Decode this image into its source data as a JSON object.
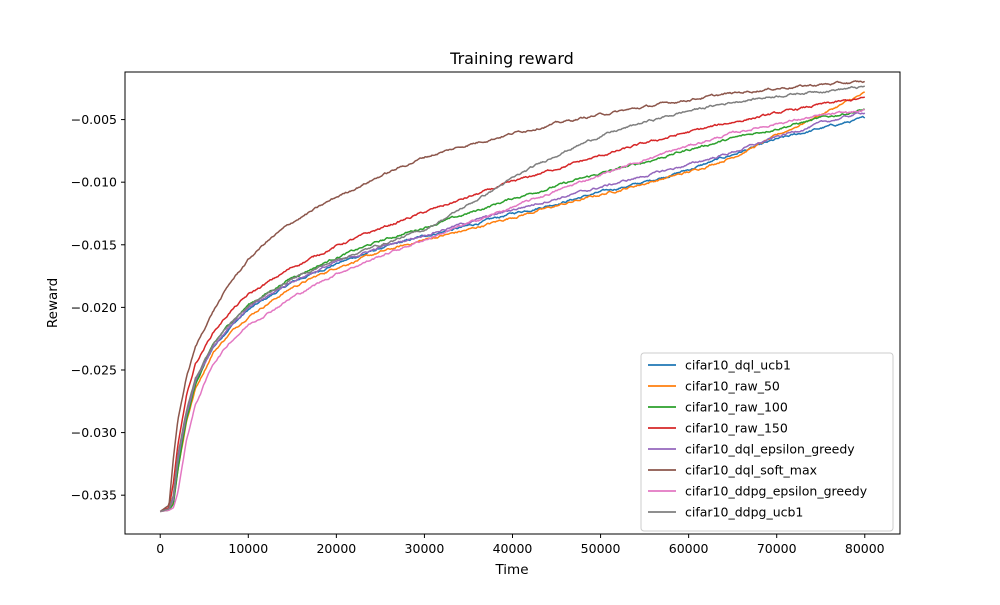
{
  "chart_data": {
    "type": "line",
    "title": "Training reward",
    "xlabel": "Time",
    "ylabel": "Reward",
    "xlim": [
      -4000,
      84000
    ],
    "ylim": [
      -0.0381,
      -0.0012
    ],
    "xticks": [
      0,
      10000,
      20000,
      30000,
      40000,
      50000,
      60000,
      70000,
      80000
    ],
    "xtick_labels": [
      "0",
      "10000",
      "20000",
      "30000",
      "40000",
      "50000",
      "60000",
      "70000",
      "80000"
    ],
    "yticks": [
      -0.035,
      -0.03,
      -0.025,
      -0.02,
      -0.015,
      -0.01,
      -0.005
    ],
    "ytick_labels": [
      "−0.035",
      "−0.030",
      "−0.025",
      "−0.020",
      "−0.015",
      "−0.010",
      "−0.005"
    ],
    "grid": false,
    "legend_position": "lower-right",
    "series": [
      {
        "name": "cifar10_dql_ucb1",
        "color": "#1f77b4",
        "points": [
          [
            0,
            -0.0363
          ],
          [
            1000,
            -0.0361
          ],
          [
            1500,
            -0.0355
          ],
          [
            2000,
            -0.0325
          ],
          [
            3000,
            -0.0285
          ],
          [
            4000,
            -0.026
          ],
          [
            6000,
            -0.0232
          ],
          [
            8000,
            -0.0215
          ],
          [
            10000,
            -0.0202
          ],
          [
            15000,
            -0.018
          ],
          [
            20000,
            -0.0165
          ],
          [
            25000,
            -0.0153
          ],
          [
            30000,
            -0.0143
          ],
          [
            35000,
            -0.0135
          ],
          [
            40000,
            -0.0125
          ],
          [
            45000,
            -0.0117
          ],
          [
            50000,
            -0.0108
          ],
          [
            55000,
            -0.01
          ],
          [
            60000,
            -0.009
          ],
          [
            65000,
            -0.0078
          ],
          [
            70000,
            -0.0066
          ],
          [
            75000,
            -0.0057
          ],
          [
            80000,
            -0.0049
          ]
        ]
      },
      {
        "name": "cifar10_raw_50",
        "color": "#ff7f0e",
        "points": [
          [
            0,
            -0.0363
          ],
          [
            1000,
            -0.0361
          ],
          [
            1500,
            -0.0356
          ],
          [
            2000,
            -0.033
          ],
          [
            3000,
            -0.029
          ],
          [
            4000,
            -0.0265
          ],
          [
            6000,
            -0.0236
          ],
          [
            8000,
            -0.022
          ],
          [
            10000,
            -0.0207
          ],
          [
            15000,
            -0.0184
          ],
          [
            20000,
            -0.0168
          ],
          [
            25000,
            -0.0156
          ],
          [
            30000,
            -0.0146
          ],
          [
            35000,
            -0.0138
          ],
          [
            40000,
            -0.0128
          ],
          [
            45000,
            -0.0119
          ],
          [
            50000,
            -0.011
          ],
          [
            55000,
            -0.0101
          ],
          [
            60000,
            -0.0092
          ],
          [
            65000,
            -0.008
          ],
          [
            70000,
            -0.0063
          ],
          [
            75000,
            -0.0046
          ],
          [
            80000,
            -0.0029
          ]
        ]
      },
      {
        "name": "cifar10_raw_100",
        "color": "#2ca02c",
        "points": [
          [
            0,
            -0.0363
          ],
          [
            1000,
            -0.0362
          ],
          [
            1500,
            -0.0357
          ],
          [
            2000,
            -0.033
          ],
          [
            3000,
            -0.0288
          ],
          [
            4000,
            -0.0262
          ],
          [
            6000,
            -0.023
          ],
          [
            8000,
            -0.0212
          ],
          [
            10000,
            -0.0198
          ],
          [
            15000,
            -0.0176
          ],
          [
            20000,
            -0.016
          ],
          [
            25000,
            -0.0147
          ],
          [
            30000,
            -0.0136
          ],
          [
            35000,
            -0.0125
          ],
          [
            40000,
            -0.0113
          ],
          [
            45000,
            -0.0103
          ],
          [
            50000,
            -0.0093
          ],
          [
            55000,
            -0.0084
          ],
          [
            60000,
            -0.0074
          ],
          [
            65000,
            -0.0065
          ],
          [
            70000,
            -0.0057
          ],
          [
            75000,
            -0.0049
          ],
          [
            80000,
            -0.0042
          ]
        ]
      },
      {
        "name": "cifar10_raw_150",
        "color": "#d62728",
        "points": [
          [
            0,
            -0.0363
          ],
          [
            1000,
            -0.036
          ],
          [
            1500,
            -0.034
          ],
          [
            2000,
            -0.031
          ],
          [
            3000,
            -0.027
          ],
          [
            4000,
            -0.0245
          ],
          [
            6000,
            -0.022
          ],
          [
            8000,
            -0.0203
          ],
          [
            10000,
            -0.019
          ],
          [
            15000,
            -0.0168
          ],
          [
            20000,
            -0.0151
          ],
          [
            25000,
            -0.0137
          ],
          [
            30000,
            -0.0124
          ],
          [
            35000,
            -0.0112
          ],
          [
            40000,
            -0.01
          ],
          [
            45000,
            -0.0089
          ],
          [
            50000,
            -0.0079
          ],
          [
            55000,
            -0.0069
          ],
          [
            60000,
            -0.006
          ],
          [
            65000,
            -0.0052
          ],
          [
            70000,
            -0.0045
          ],
          [
            75000,
            -0.0038
          ],
          [
            80000,
            -0.0033
          ]
        ]
      },
      {
        "name": "cifar10_dql_epsilon_greedy",
        "color": "#9467bd",
        "points": [
          [
            0,
            -0.0363
          ],
          [
            1000,
            -0.0361
          ],
          [
            1500,
            -0.0353
          ],
          [
            2000,
            -0.0322
          ],
          [
            3000,
            -0.0284
          ],
          [
            4000,
            -0.0258
          ],
          [
            6000,
            -0.0231
          ],
          [
            8000,
            -0.0214
          ],
          [
            10000,
            -0.0201
          ],
          [
            15000,
            -0.0179
          ],
          [
            20000,
            -0.0164
          ],
          [
            25000,
            -0.0152
          ],
          [
            30000,
            -0.0142
          ],
          [
            35000,
            -0.0132
          ],
          [
            40000,
            -0.0122
          ],
          [
            45000,
            -0.0113
          ],
          [
            50000,
            -0.0104
          ],
          [
            55000,
            -0.0095
          ],
          [
            60000,
            -0.0086
          ],
          [
            65000,
            -0.0076
          ],
          [
            70000,
            -0.0064
          ],
          [
            75000,
            -0.0053
          ],
          [
            80000,
            -0.0044
          ]
        ]
      },
      {
        "name": "cifar10_dql_soft_max",
        "color": "#8c564b",
        "points": [
          [
            0,
            -0.0363
          ],
          [
            1000,
            -0.0358
          ],
          [
            1500,
            -0.032
          ],
          [
            2000,
            -0.029
          ],
          [
            3000,
            -0.0255
          ],
          [
            4000,
            -0.0232
          ],
          [
            5000,
            -0.0217
          ],
          [
            6000,
            -0.0203
          ],
          [
            8000,
            -0.018
          ],
          [
            10000,
            -0.0162
          ],
          [
            12000,
            -0.0148
          ],
          [
            15000,
            -0.0132
          ],
          [
            20000,
            -0.0112
          ],
          [
            25000,
            -0.0095
          ],
          [
            30000,
            -0.008
          ],
          [
            35000,
            -0.007
          ],
          [
            40000,
            -0.0061
          ],
          [
            45000,
            -0.0053
          ],
          [
            50000,
            -0.0046
          ],
          [
            55000,
            -0.004
          ],
          [
            60000,
            -0.0034
          ],
          [
            65000,
            -0.0029
          ],
          [
            70000,
            -0.0025
          ],
          [
            75000,
            -0.0022
          ],
          [
            80000,
            -0.002
          ]
        ]
      },
      {
        "name": "cifar10_ddpg_epsilon_greedy",
        "color": "#e377c2",
        "points": [
          [
            0,
            -0.0363
          ],
          [
            1000,
            -0.0362
          ],
          [
            1500,
            -0.036
          ],
          [
            2000,
            -0.0348
          ],
          [
            3000,
            -0.0305
          ],
          [
            4000,
            -0.0278
          ],
          [
            6000,
            -0.0245
          ],
          [
            8000,
            -0.0227
          ],
          [
            10000,
            -0.0214
          ],
          [
            15000,
            -0.0192
          ],
          [
            20000,
            -0.0173
          ],
          [
            25000,
            -0.0159
          ],
          [
            30000,
            -0.0146
          ],
          [
            35000,
            -0.0133
          ],
          [
            40000,
            -0.012
          ],
          [
            45000,
            -0.0107
          ],
          [
            50000,
            -0.0094
          ],
          [
            55000,
            -0.0082
          ],
          [
            60000,
            -0.0071
          ],
          [
            65000,
            -0.0061
          ],
          [
            70000,
            -0.0053
          ],
          [
            75000,
            -0.0047
          ],
          [
            80000,
            -0.0043
          ]
        ]
      },
      {
        "name": "cifar10_ddpg_ucb1",
        "color": "#7f7f7f",
        "points": [
          [
            0,
            -0.0363
          ],
          [
            1000,
            -0.0361
          ],
          [
            1500,
            -0.035
          ],
          [
            2000,
            -0.0318
          ],
          [
            3000,
            -0.0282
          ],
          [
            4000,
            -0.0257
          ],
          [
            6000,
            -0.0229
          ],
          [
            8000,
            -0.0212
          ],
          [
            10000,
            -0.0199
          ],
          [
            15000,
            -0.0177
          ],
          [
            20000,
            -0.0162
          ],
          [
            25000,
            -0.015
          ],
          [
            30000,
            -0.0138
          ],
          [
            35000,
            -0.0118
          ],
          [
            40000,
            -0.0097
          ],
          [
            45000,
            -0.0078
          ],
          [
            50000,
            -0.0063
          ],
          [
            55000,
            -0.0052
          ],
          [
            60000,
            -0.0043
          ],
          [
            65000,
            -0.0036
          ],
          [
            70000,
            -0.0031
          ],
          [
            75000,
            -0.0027
          ],
          [
            80000,
            -0.0024
          ]
        ]
      }
    ]
  }
}
